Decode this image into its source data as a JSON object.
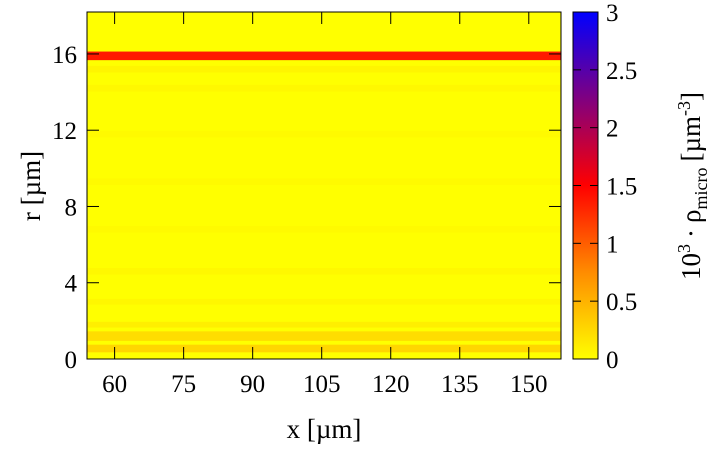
{
  "chart_data": {
    "type": "heatmap",
    "xlabel": "x [µm]",
    "ylabel": "r [µm]",
    "xlim": [
      54,
      157
    ],
    "ylim": [
      0,
      18.2
    ],
    "x_ticks": [
      60,
      75,
      90,
      105,
      120,
      135,
      150
    ],
    "x_tick_labels": [
      "60",
      "75",
      "90",
      "105",
      "120",
      "135",
      "150"
    ],
    "y_ticks": [
      0,
      4,
      8,
      12,
      16
    ],
    "y_tick_labels": [
      "0",
      "4",
      "8",
      "12",
      "16"
    ],
    "colorbar": {
      "label_base": "10",
      "label_exp": "3",
      "label_dot": "·",
      "label_rho": "ρ",
      "label_sub": "micro",
      "label_unit": "[µm",
      "label_unit_exp": "-3",
      "label_close": "]",
      "range": [
        0,
        3
      ],
      "ticks": [
        0,
        0.5,
        1,
        1.5,
        2,
        2.5,
        3
      ],
      "tick_labels": [
        "0",
        "0.5",
        "1",
        "1.5",
        "2",
        "2.5",
        "3"
      ],
      "colors": [
        "#ffff00",
        "#ff8c00",
        "#ff0000",
        "#800080",
        "#0000ff"
      ]
    },
    "bands": [
      {
        "r": 15.9,
        "width": 0.45,
        "value": 1.5
      },
      {
        "r": 1.2,
        "width": 0.5,
        "value": 0.25
      },
      {
        "r": 0.55,
        "width": 0.4,
        "value": 0.3
      },
      {
        "r": 1.8,
        "width": 0.3,
        "value": 0.12
      },
      {
        "r": 3.0,
        "width": 0.3,
        "value": 0.06
      },
      {
        "r": 4.6,
        "width": 0.35,
        "value": 0.05
      },
      {
        "r": 6.8,
        "width": 0.35,
        "value": 0.04
      },
      {
        "r": 9.3,
        "width": 0.35,
        "value": 0.04
      },
      {
        "r": 11.8,
        "width": 0.35,
        "value": 0.04
      },
      {
        "r": 14.2,
        "width": 0.35,
        "value": 0.05
      },
      {
        "r": 15.2,
        "width": 0.35,
        "value": 0.07
      }
    ]
  }
}
